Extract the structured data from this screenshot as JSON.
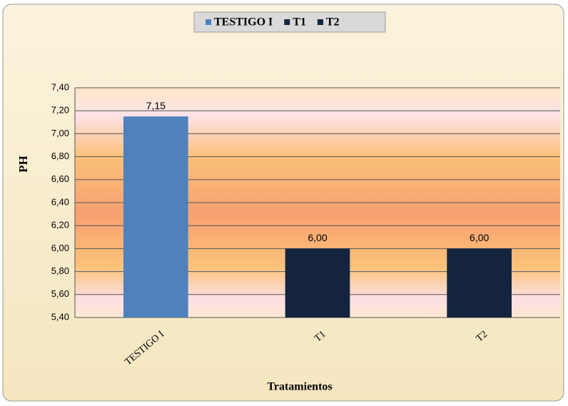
{
  "chart_data": {
    "type": "bar",
    "categories": [
      "TESTIGO I",
      "T1",
      "T2"
    ],
    "values": [
      7.15,
      6.0,
      6.0
    ],
    "value_labels": [
      "7,15",
      "6,00",
      "6,00"
    ],
    "colors": [
      "#4f81bd",
      "#14243e",
      "#14243e"
    ],
    "xlabel": "Tratamientos",
    "ylabel": "PH",
    "ylim": [
      5.4,
      7.4
    ],
    "yticks": [
      {
        "value": 5.4,
        "label": "5,40"
      },
      {
        "value": 5.6,
        "label": "5,60"
      },
      {
        "value": 5.8,
        "label": "5,80"
      },
      {
        "value": 6.0,
        "label": "6,00"
      },
      {
        "value": 6.2,
        "label": "6,20"
      },
      {
        "value": 6.4,
        "label": "6,40"
      },
      {
        "value": 6.6,
        "label": "6,60"
      },
      {
        "value": 6.8,
        "label": "6,80"
      },
      {
        "value": 7.0,
        "label": "7,00"
      },
      {
        "value": 7.2,
        "label": "7,20"
      },
      {
        "value": 7.4,
        "label": "7,40"
      }
    ],
    "grid": true,
    "legend": "top"
  }
}
